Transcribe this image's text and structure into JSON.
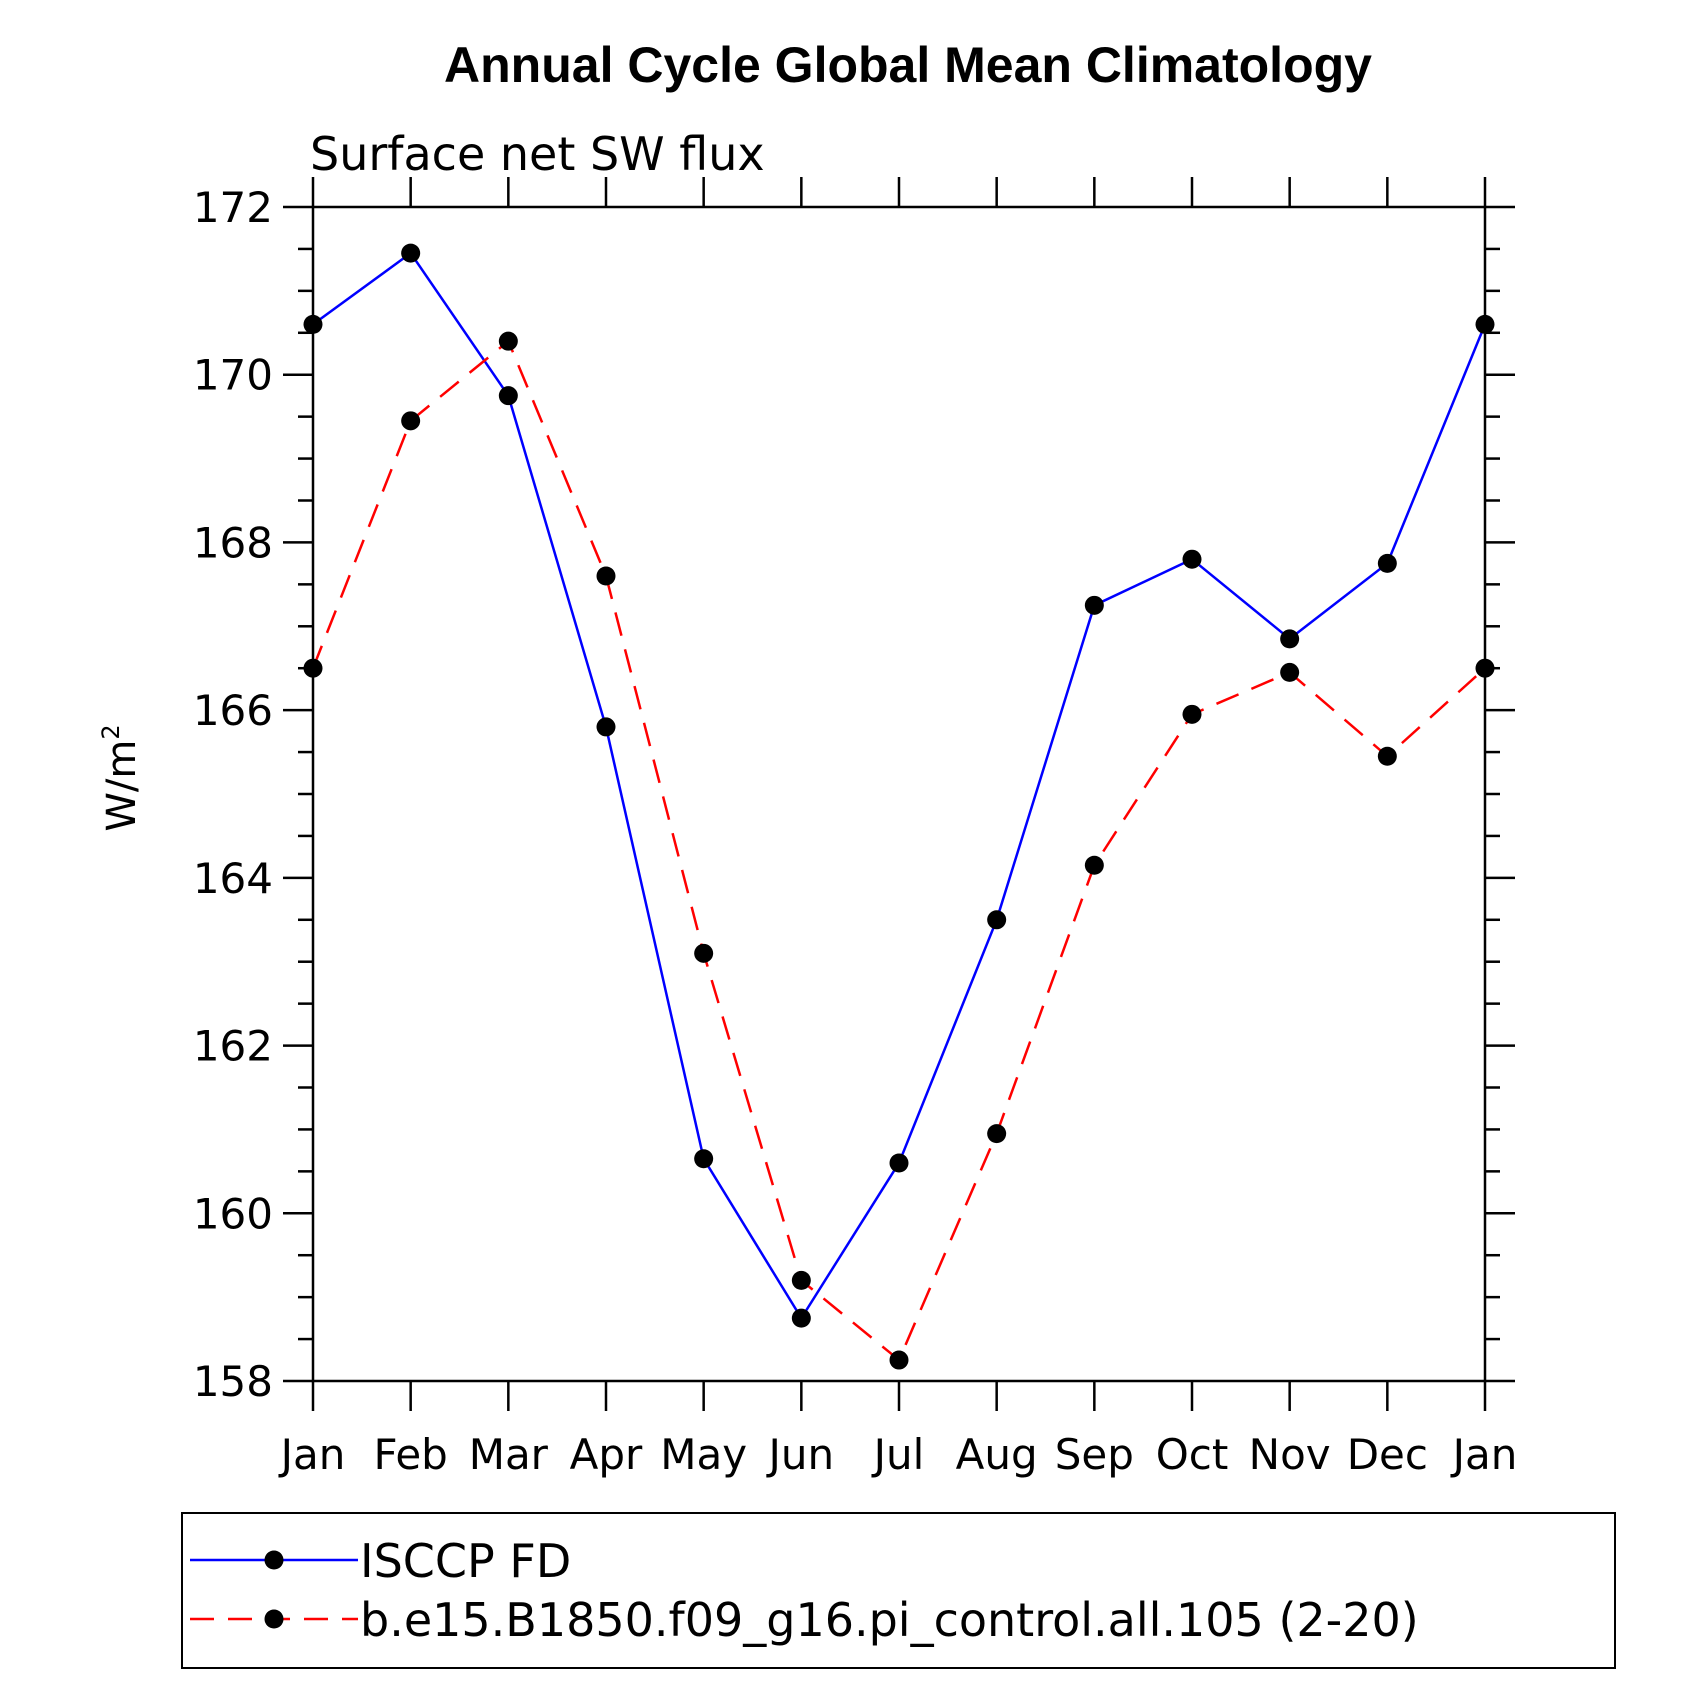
{
  "chart_data": {
    "type": "line",
    "title": "Annual Cycle Global Mean Climatology",
    "subtitle": "Surface net SW flux",
    "ylabel": "W/m",
    "ylabel_superscript": "2",
    "xlabel": "",
    "categories": [
      "Jan",
      "Feb",
      "Mar",
      "Apr",
      "May",
      "Jun",
      "Jul",
      "Aug",
      "Sep",
      "Oct",
      "Nov",
      "Dec",
      "Jan"
    ],
    "ylim": [
      158,
      172
    ],
    "yticks": [
      "158",
      "160",
      "162",
      "164",
      "166",
      "168",
      "170",
      "172"
    ],
    "series": [
      {
        "name": "ISCCP FD",
        "color": "#0000ff",
        "dash": "solid",
        "values": [
          170.6,
          171.45,
          169.75,
          165.8,
          160.65,
          158.75,
          160.6,
          163.5,
          167.25,
          167.8,
          166.85,
          167.75,
          170.6
        ]
      },
      {
        "name": "b.e15.B1850.f09_g16.pi_control.all.105 (2-20)",
        "color": "#ff0000",
        "dash": "dashed",
        "values": [
          166.5,
          169.45,
          170.4,
          167.6,
          163.1,
          159.2,
          158.25,
          160.95,
          164.15,
          165.95,
          166.45,
          165.45,
          166.5
        ]
      }
    ],
    "legend_position": "bottom"
  }
}
